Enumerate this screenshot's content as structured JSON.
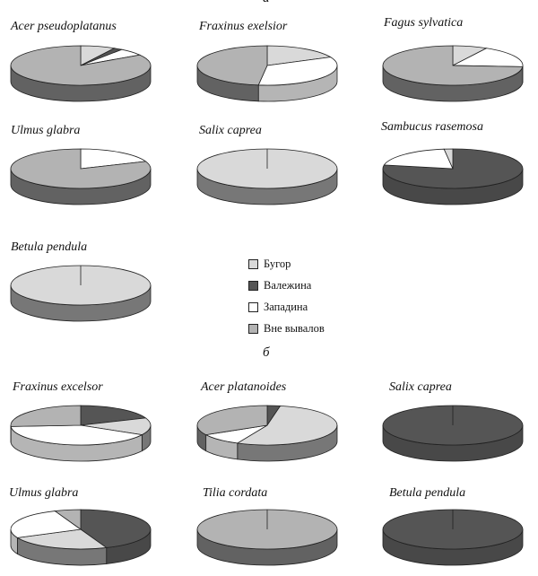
{
  "chart_data": {
    "type": "pie",
    "sections": [
      "а",
      "б"
    ],
    "legend": {
      "placement": "center",
      "items": [
        {
          "key": "bugor",
          "label": "Бугор",
          "color": "#d9d9d9"
        },
        {
          "key": "valezhina",
          "label": "Валежина",
          "color": "#555555"
        },
        {
          "key": "zapadina",
          "label": "Западина",
          "color": "#ffffff"
        },
        {
          "key": "vne",
          "label": "Вне вывалов",
          "color": "#b3b3b3"
        }
      ]
    },
    "charts": [
      {
        "section": "а",
        "title": "Acer pseudoplatanus",
        "slices": [
          {
            "key": "bugor",
            "value": 8
          },
          {
            "key": "valezhina",
            "value": 2
          },
          {
            "key": "zapadina",
            "value": 6
          },
          {
            "key": "vne",
            "value": 84
          }
        ]
      },
      {
        "section": "а",
        "title": "Fraxinus exelsior",
        "slices": [
          {
            "key": "bugor",
            "value": 18
          },
          {
            "key": "zapadina",
            "value": 34
          },
          {
            "key": "vne",
            "value": 48
          }
        ]
      },
      {
        "section": "а",
        "title": "Fagus sylvatica",
        "slices": [
          {
            "key": "bugor",
            "value": 8
          },
          {
            "key": "zapadina",
            "value": 18
          },
          {
            "key": "vne",
            "value": 74
          }
        ]
      },
      {
        "section": "а",
        "title": "Ulmus glabra",
        "slices": [
          {
            "key": "zapadina",
            "value": 19
          },
          {
            "key": "vne",
            "value": 81
          }
        ]
      },
      {
        "section": "а",
        "title": "Salix caprea",
        "slices": [
          {
            "key": "bugor",
            "value": 100
          }
        ]
      },
      {
        "section": "а",
        "title": "Sambucus rasemosa",
        "slices": [
          {
            "key": "valezhina",
            "value": 78
          },
          {
            "key": "zapadina",
            "value": 20
          },
          {
            "key": "bugor",
            "value": 2
          }
        ]
      },
      {
        "section": "а",
        "title": "Betula pendula",
        "slices": [
          {
            "key": "bugor",
            "value": 100
          }
        ]
      },
      {
        "section": "б",
        "title": "Fraxinus excelsor",
        "slices": [
          {
            "key": "valezhina",
            "value": 19
          },
          {
            "key": "bugor",
            "value": 14
          },
          {
            "key": "zapadina",
            "value": 41
          },
          {
            "key": "vne",
            "value": 26
          }
        ]
      },
      {
        "section": "б",
        "title": "Acer platanoides",
        "slices": [
          {
            "key": "valezhina",
            "value": 3
          },
          {
            "key": "bugor",
            "value": 54
          },
          {
            "key": "zapadina",
            "value": 10
          },
          {
            "key": "vne",
            "value": 33
          }
        ]
      },
      {
        "section": "б",
        "title": "Salix caprea",
        "slices": [
          {
            "key": "valezhina",
            "value": 100
          }
        ]
      },
      {
        "section": "б",
        "title": "Ulmus glabra",
        "slices": [
          {
            "key": "valezhina",
            "value": 44
          },
          {
            "key": "bugor",
            "value": 24
          },
          {
            "key": "zapadina",
            "value": 26
          },
          {
            "key": "vne",
            "value": 6
          }
        ]
      },
      {
        "section": "б",
        "title": "Tilia cordata",
        "slices": [
          {
            "key": "vne",
            "value": 100
          }
        ]
      },
      {
        "section": "б",
        "title": "Betula pendula",
        "slices": [
          {
            "key": "valezhina",
            "value": 100
          }
        ]
      }
    ]
  }
}
